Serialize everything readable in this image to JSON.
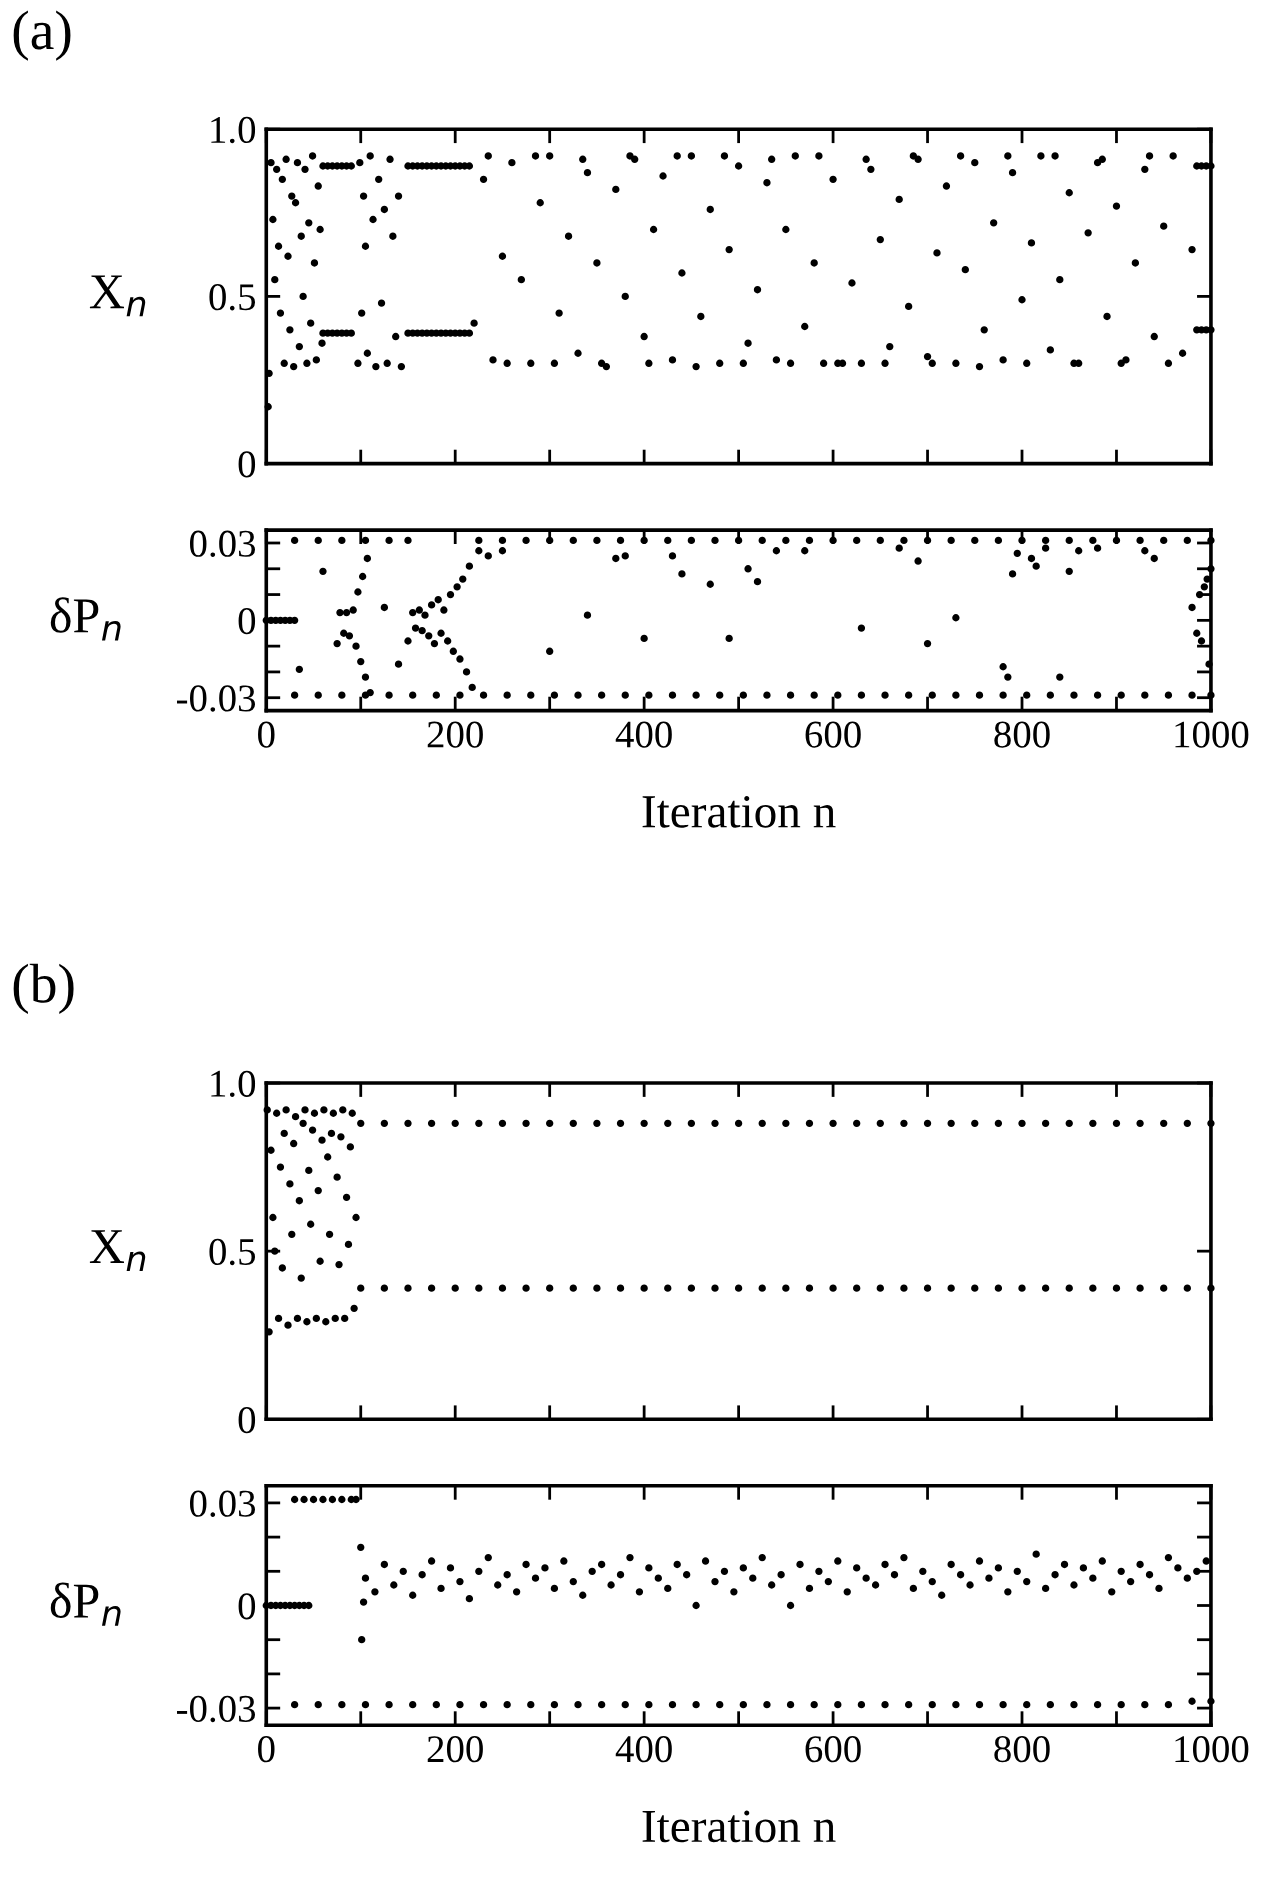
{
  "chart_data": [
    {
      "type": "scatter",
      "title": "(a)",
      "ylabel": "X$_{n}$",
      "xlim": [
        0,
        1000
      ],
      "ylim": [
        0,
        1.0
      ],
      "tick_labels": "y",
      "grid": false,
      "marker": "circle",
      "xticks": [
        0,
        {
          "value": 100,
          "label": null
        },
        200,
        {
          "value": 300,
          "label": null
        },
        400,
        {
          "value": 500,
          "label": null
        },
        600,
        {
          "value": 700,
          "label": null
        },
        800,
        {
          "value": 900,
          "label": null
        },
        1000
      ],
      "yticks": [
        0,
        0.5,
        {
          "value": 1.0,
          "label": "1.0"
        }
      ],
      "series": [
        {
          "color": "#000000",
          "x": [
            2,
            3,
            5,
            7,
            9,
            11,
            13,
            15,
            17,
            19,
            21,
            23,
            25,
            27,
            29,
            31,
            33,
            35,
            37,
            39,
            41,
            43,
            45,
            47,
            49,
            51,
            53,
            55,
            57,
            59,
            97,
            99,
            101,
            103,
            105,
            107,
            110,
            113,
            116,
            119,
            122,
            125,
            128,
            131,
            134,
            137,
            140,
            143,
            220,
            230,
            240,
            250,
            260,
            270,
            280,
            290,
            300,
            310,
            320,
            330,
            340,
            350,
            360,
            370,
            380,
            390,
            400,
            410,
            420,
            430,
            440,
            450,
            460,
            470,
            480,
            490,
            500,
            510,
            520,
            530,
            540,
            550,
            560,
            570,
            580,
            590,
            600,
            610,
            620,
            630,
            640,
            650,
            660,
            670,
            680,
            690,
            700,
            710,
            720,
            730,
            740,
            750,
            760,
            770,
            780,
            790,
            800,
            810,
            820,
            830,
            840,
            850,
            860,
            870,
            880,
            890,
            900,
            910,
            920,
            930,
            940,
            950,
            960,
            970,
            980,
            235,
            285,
            335,
            385,
            435,
            485,
            535,
            585,
            635,
            685,
            735,
            785,
            835,
            885,
            935,
            255,
            305,
            355,
            405,
            455,
            505,
            555,
            605,
            655,
            705,
            755,
            805,
            855,
            905,
            955
          ],
          "values": [
            0.17,
            0.27,
            0.9,
            0.73,
            0.55,
            0.88,
            0.65,
            0.45,
            0.85,
            0.3,
            0.91,
            0.62,
            0.4,
            0.8,
            0.29,
            0.78,
            0.9,
            0.35,
            0.68,
            0.5,
            0.88,
            0.3,
            0.72,
            0.42,
            0.92,
            0.6,
            0.31,
            0.83,
            0.7,
            0.36,
            0.3,
            0.9,
            0.45,
            0.8,
            0.65,
            0.33,
            0.92,
            0.73,
            0.29,
            0.85,
            0.48,
            0.76,
            0.3,
            0.91,
            0.68,
            0.38,
            0.8,
            0.29,
            0.42,
            0.85,
            0.31,
            0.62,
            0.9,
            0.55,
            0.3,
            0.78,
            0.92,
            0.45,
            0.68,
            0.33,
            0.87,
            0.6,
            0.29,
            0.82,
            0.5,
            0.91,
            0.38,
            0.7,
            0.86,
            0.31,
            0.57,
            0.92,
            0.44,
            0.76,
            0.3,
            0.64,
            0.89,
            0.36,
            0.52,
            0.84,
            0.31,
            0.7,
            0.92,
            0.41,
            0.6,
            0.3,
            0.85,
            0.3,
            0.54,
            0.3,
            0.88,
            0.67,
            0.35,
            0.79,
            0.47,
            0.91,
            0.32,
            0.63,
            0.83,
            0.3,
            0.58,
            0.9,
            0.4,
            0.72,
            0.31,
            0.87,
            0.49,
            0.66,
            0.92,
            0.34,
            0.55,
            0.81,
            0.3,
            0.69,
            0.9,
            0.44,
            0.77,
            0.31,
            0.6,
            0.88,
            0.38,
            0.71,
            0.92,
            0.33,
            0.64,
            0.92,
            0.92,
            0.91,
            0.92,
            0.92,
            0.92,
            0.91,
            0.92,
            0.91,
            0.92,
            0.92,
            0.92,
            0.92,
            0.91,
            0.92,
            0.3,
            0.3,
            0.3,
            0.3,
            0.29,
            0.3,
            0.3,
            0.3,
            0.3,
            0.3,
            0.29,
            0.3,
            0.3,
            0.3,
            0.3
          ]
        },
        {
          "color": "#000000",
          "x": [
            60,
            65,
            70,
            75,
            80,
            85,
            90,
            150,
            155,
            160,
            165,
            170,
            175,
            180,
            185,
            190,
            195,
            200,
            205,
            210,
            215,
            985,
            990,
            995,
            1000
          ],
          "values": [
            0.89,
            0.89,
            0.89,
            0.89,
            0.89,
            0.89,
            0.89,
            0.89,
            0.89,
            0.89,
            0.89,
            0.89,
            0.89,
            0.89,
            0.89,
            0.89,
            0.89,
            0.89,
            0.89,
            0.89,
            0.89,
            0.89,
            0.89,
            0.89,
            0.89
          ]
        },
        {
          "color": "#000000",
          "x": [
            60,
            65,
            70,
            75,
            80,
            85,
            90,
            150,
            155,
            160,
            165,
            170,
            175,
            180,
            185,
            190,
            195,
            200,
            205,
            210,
            215,
            985,
            990,
            995,
            1000
          ],
          "values": [
            0.39,
            0.39,
            0.39,
            0.39,
            0.39,
            0.39,
            0.39,
            0.39,
            0.39,
            0.39,
            0.39,
            0.39,
            0.39,
            0.39,
            0.39,
            0.39,
            0.39,
            0.39,
            0.39,
            0.39,
            0.39,
            0.4,
            0.4,
            0.4,
            0.4
          ]
        }
      ]
    },
    {
      "type": "scatter",
      "xlabel": "Iteration n",
      "ylabel": "δP$_{n}$",
      "xlim": [
        0,
        1000
      ],
      "ylim": [
        -0.035,
        0.035
      ],
      "grid": false,
      "marker": "circle",
      "xticks": [
        0,
        {
          "value": 100,
          "label": null
        },
        200,
        {
          "value": 300,
          "label": null
        },
        400,
        {
          "value": 500,
          "label": null
        },
        600,
        {
          "value": 700,
          "label": null
        },
        800,
        {
          "value": 900,
          "label": null
        },
        1000
      ],
      "yticks": [
        -0.03,
        {
          "value": -0.02,
          "label": null
        },
        {
          "value": -0.01,
          "label": null
        },
        0,
        {
          "value": 0.01,
          "label": null
        },
        {
          "value": 0.02,
          "label": null
        },
        0.03
      ],
      "series": [
        {
          "color": "#000000",
          "x": [
            0,
            5,
            10,
            15,
            20,
            25,
            30
          ],
          "values": [
            0,
            0,
            0,
            0,
            0,
            0,
            0
          ]
        },
        {
          "color": "#000000",
          "x": [
            30,
            55,
            80,
            105,
            130,
            150,
            225,
            250,
            275,
            300,
            325,
            350,
            375,
            400,
            425,
            450,
            475,
            500,
            525,
            550,
            575,
            600,
            625,
            650,
            675,
            700,
            725,
            750,
            775,
            800,
            825,
            850,
            875,
            900,
            925,
            950,
            975,
            1000
          ],
          "values": [
            0.031,
            0.031,
            0.031,
            0.031,
            0.031,
            0.031,
            0.031,
            0.031,
            0.031,
            0.031,
            0.031,
            0.031,
            0.031,
            0.031,
            0.031,
            0.031,
            0.031,
            0.031,
            0.031,
            0.031,
            0.031,
            0.031,
            0.031,
            0.031,
            0.031,
            0.031,
            0.031,
            0.031,
            0.031,
            0.031,
            0.031,
            0.031,
            0.031,
            0.031,
            0.031,
            0.031,
            0.031,
            0.031
          ]
        },
        {
          "color": "#000000",
          "x": [
            30,
            55,
            80,
            105,
            130,
            155,
            180,
            205,
            230,
            255,
            280,
            305,
            330,
            355,
            380,
            405,
            430,
            455,
            480,
            505,
            530,
            555,
            580,
            605,
            630,
            655,
            680,
            705,
            730,
            755,
            780,
            805,
            830,
            855,
            880,
            905,
            930,
            955,
            980,
            1000
          ],
          "values": [
            -0.029,
            -0.029,
            -0.029,
            -0.029,
            -0.029,
            -0.029,
            -0.029,
            -0.029,
            -0.029,
            -0.029,
            -0.029,
            -0.029,
            -0.029,
            -0.029,
            -0.029,
            -0.029,
            -0.029,
            -0.029,
            -0.029,
            -0.029,
            -0.029,
            -0.029,
            -0.029,
            -0.029,
            -0.029,
            -0.029,
            -0.029,
            -0.029,
            -0.029,
            -0.029,
            -0.029,
            -0.029,
            -0.029,
            -0.029,
            -0.029,
            -0.029,
            -0.029,
            -0.029,
            -0.029,
            -0.029
          ]
        },
        {
          "color": "#000000",
          "x": [
            35,
            60,
            75,
            78,
            82,
            85,
            88,
            92,
            95,
            97,
            100,
            102,
            105,
            107,
            110,
            125,
            140,
            150,
            155,
            158,
            162,
            165,
            168,
            172,
            175,
            178,
            182,
            185,
            188,
            192,
            195,
            198,
            202,
            205,
            208,
            212,
            215,
            218,
            225,
            235,
            250,
            300,
            340,
            370,
            380,
            400,
            430,
            440,
            470,
            490,
            510,
            520,
            540,
            570,
            630,
            670,
            690,
            700,
            730,
            780,
            785,
            790,
            795,
            810,
            815,
            825,
            840,
            850,
            860,
            880,
            930,
            940,
            980,
            985,
            988,
            990,
            993,
            996,
            998,
            1000
          ],
          "values": [
            -0.019,
            0.019,
            -0.009,
            0.003,
            -0.005,
            0.003,
            -0.006,
            0.004,
            -0.01,
            0.011,
            -0.016,
            0.017,
            -0.022,
            0.024,
            -0.028,
            0.005,
            -0.017,
            -0.008,
            0.003,
            -0.003,
            0.004,
            -0.004,
            0.002,
            -0.006,
            0.006,
            -0.009,
            0.008,
            -0.005,
            0.004,
            -0.008,
            0.01,
            -0.012,
            0.013,
            -0.015,
            0.016,
            -0.02,
            0.021,
            -0.026,
            0.027,
            0.025,
            0.027,
            -0.012,
            0.002,
            0.024,
            0.025,
            -0.007,
            0.025,
            0.018,
            0.014,
            -0.007,
            0.02,
            0.015,
            0.027,
            0.027,
            -0.003,
            0.028,
            0.023,
            -0.009,
            0.001,
            -0.018,
            -0.022,
            0.018,
            0.026,
            0.024,
            0.021,
            0.028,
            -0.022,
            0.019,
            0.027,
            0.028,
            0.027,
            0.024,
            0.005,
            -0.005,
            0.01,
            -0.008,
            0.013,
            0.016,
            -0.017,
            0.02
          ]
        }
      ]
    },
    {
      "type": "scatter",
      "title": "(b)",
      "ylabel": "X$_{n}$",
      "xlim": [
        0,
        1000
      ],
      "ylim": [
        0,
        1.0
      ],
      "tick_labels": "y",
      "grid": false,
      "marker": "circle",
      "xticks": [
        0,
        {
          "value": 100,
          "label": null
        },
        200,
        {
          "value": 300,
          "label": null
        },
        400,
        {
          "value": 500,
          "label": null
        },
        600,
        {
          "value": 700,
          "label": null
        },
        800,
        {
          "value": 900,
          "label": null
        },
        1000
      ],
      "yticks": [
        0,
        0.5,
        {
          "value": 1.0,
          "label": "1.0"
        }
      ],
      "series": [
        {
          "color": "#000000",
          "x": [
            1,
            3,
            5,
            7,
            9,
            11,
            13,
            15,
            17,
            19,
            21,
            23,
            25,
            27,
            29,
            31,
            33,
            35,
            37,
            39,
            41,
            43,
            45,
            47,
            49,
            51,
            53,
            55,
            57,
            59,
            61,
            63,
            65,
            67,
            69,
            71,
            73,
            75,
            77,
            79,
            81,
            83,
            85,
            87,
            89,
            91,
            93,
            95
          ],
          "values": [
            0.92,
            0.26,
            0.8,
            0.6,
            0.5,
            0.91,
            0.3,
            0.75,
            0.45,
            0.85,
            0.92,
            0.28,
            0.7,
            0.55,
            0.82,
            0.9,
            0.3,
            0.65,
            0.42,
            0.88,
            0.92,
            0.29,
            0.74,
            0.58,
            0.86,
            0.91,
            0.3,
            0.68,
            0.47,
            0.83,
            0.92,
            0.29,
            0.78,
            0.55,
            0.85,
            0.91,
            0.3,
            0.72,
            0.46,
            0.84,
            0.92,
            0.3,
            0.66,
            0.52,
            0.81,
            0.91,
            0.33,
            0.6
          ]
        },
        {
          "color": "#000000",
          "x": [
            100,
            125,
            150,
            175,
            200,
            225,
            250,
            275,
            300,
            325,
            350,
            375,
            400,
            425,
            450,
            475,
            500,
            525,
            550,
            575,
            600,
            625,
            650,
            675,
            700,
            725,
            750,
            775,
            800,
            825,
            850,
            875,
            900,
            925,
            950,
            975,
            1000
          ],
          "values": [
            0.88,
            0.88,
            0.88,
            0.88,
            0.88,
            0.88,
            0.88,
            0.88,
            0.88,
            0.88,
            0.88,
            0.88,
            0.88,
            0.88,
            0.88,
            0.88,
            0.88,
            0.88,
            0.88,
            0.88,
            0.88,
            0.88,
            0.88,
            0.88,
            0.88,
            0.88,
            0.88,
            0.88,
            0.88,
            0.88,
            0.88,
            0.88,
            0.88,
            0.88,
            0.88,
            0.88,
            0.88
          ]
        },
        {
          "color": "#000000",
          "x": [
            100,
            125,
            150,
            175,
            200,
            225,
            250,
            275,
            300,
            325,
            350,
            375,
            400,
            425,
            450,
            475,
            500,
            525,
            550,
            575,
            600,
            625,
            650,
            675,
            700,
            725,
            750,
            775,
            800,
            825,
            850,
            875,
            900,
            925,
            950,
            975,
            1000
          ],
          "values": [
            0.39,
            0.39,
            0.39,
            0.39,
            0.39,
            0.39,
            0.39,
            0.39,
            0.39,
            0.39,
            0.39,
            0.39,
            0.39,
            0.39,
            0.39,
            0.39,
            0.39,
            0.39,
            0.39,
            0.39,
            0.39,
            0.39,
            0.39,
            0.39,
            0.39,
            0.39,
            0.39,
            0.39,
            0.39,
            0.39,
            0.39,
            0.39,
            0.39,
            0.39,
            0.39,
            0.39,
            0.39
          ]
        }
      ]
    },
    {
      "type": "scatter",
      "xlabel": "Iteration n",
      "ylabel": "δP$_{n}$",
      "xlim": [
        0,
        1000
      ],
      "ylim": [
        -0.035,
        0.035
      ],
      "grid": false,
      "marker": "circle",
      "xticks": [
        0,
        {
          "value": 100,
          "label": null
        },
        200,
        {
          "value": 300,
          "label": null
        },
        400,
        {
          "value": 500,
          "label": null
        },
        600,
        {
          "value": 700,
          "label": null
        },
        800,
        {
          "value": 900,
          "label": null
        },
        1000
      ],
      "yticks": [
        -0.03,
        {
          "value": -0.02,
          "label": null
        },
        {
          "value": -0.01,
          "label": null
        },
        0,
        {
          "value": 0.01,
          "label": null
        },
        {
          "value": 0.02,
          "label": null
        },
        0.03
      ],
      "series": [
        {
          "color": "#000000",
          "x": [
            0,
            5,
            10,
            15,
            20,
            25,
            30,
            35,
            40,
            45
          ],
          "values": [
            0,
            0,
            0,
            0,
            0,
            0,
            0,
            0,
            0,
            0
          ]
        },
        {
          "color": "#000000",
          "x": [
            30,
            40,
            50,
            60,
            70,
            80,
            90,
            95
          ],
          "values": [
            0.031,
            0.031,
            0.031,
            0.031,
            0.031,
            0.031,
            0.031,
            0.031
          ]
        },
        {
          "color": "#000000",
          "x": [
            30,
            55,
            80,
            105,
            130,
            155,
            180,
            205,
            230,
            255,
            280,
            305,
            330,
            355,
            380,
            405,
            430,
            455,
            480,
            505,
            530,
            555,
            580,
            605,
            630,
            655,
            680,
            705,
            730,
            755,
            780,
            805,
            830,
            855,
            880,
            905,
            930,
            955,
            980,
            1000
          ],
          "values": [
            -0.029,
            -0.029,
            -0.029,
            -0.029,
            -0.029,
            -0.029,
            -0.029,
            -0.029,
            -0.029,
            -0.029,
            -0.029,
            -0.029,
            -0.029,
            -0.029,
            -0.029,
            -0.029,
            -0.029,
            -0.029,
            -0.029,
            -0.029,
            -0.029,
            -0.029,
            -0.029,
            -0.029,
            -0.029,
            -0.029,
            -0.029,
            -0.029,
            -0.029,
            -0.029,
            -0.029,
            -0.029,
            -0.029,
            -0.029,
            -0.029,
            -0.029,
            -0.029,
            -0.029,
            -0.028,
            -0.028
          ]
        },
        {
          "color": "#000000",
          "x": [
            100,
            101,
            103,
            105,
            115,
            125,
            135,
            145,
            155,
            165,
            175,
            185,
            195,
            205,
            215,
            225,
            235,
            245,
            255,
            265,
            275,
            285,
            295,
            305,
            315,
            325,
            335,
            345,
            355,
            365,
            375,
            385,
            395,
            405,
            415,
            425,
            435,
            445,
            455,
            465,
            475,
            485,
            495,
            505,
            515,
            525,
            535,
            545,
            555,
            565,
            575,
            585,
            595,
            605,
            615,
            625,
            635,
            645,
            655,
            665,
            675,
            685,
            695,
            705,
            715,
            725,
            735,
            745,
            755,
            765,
            775,
            785,
            795,
            805,
            815,
            825,
            835,
            845,
            855,
            865,
            875,
            885,
            895,
            905,
            915,
            925,
            935,
            945,
            955,
            965,
            975,
            985,
            995
          ],
          "values": [
            0.017,
            -0.01,
            0.001,
            0.008,
            0.004,
            0.012,
            0.006,
            0.01,
            0.003,
            0.009,
            0.013,
            0.005,
            0.011,
            0.007,
            0.002,
            0.01,
            0.014,
            0.006,
            0.009,
            0.004,
            0.012,
            0.008,
            0.011,
            0.005,
            0.013,
            0.007,
            0.003,
            0.01,
            0.012,
            0.006,
            0.009,
            0.014,
            0.004,
            0.011,
            0.008,
            0.005,
            0.012,
            0.009,
            0.0,
            0.013,
            0.007,
            0.01,
            0.004,
            0.011,
            0.008,
            0.014,
            0.006,
            0.009,
            0.0,
            0.012,
            0.005,
            0.01,
            0.007,
            0.013,
            0.004,
            0.011,
            0.008,
            0.006,
            0.012,
            0.009,
            0.014,
            0.005,
            0.01,
            0.007,
            0.003,
            0.012,
            0.009,
            0.006,
            0.013,
            0.008,
            0.011,
            0.004,
            0.01,
            0.007,
            0.015,
            0.005,
            0.009,
            0.012,
            0.006,
            0.011,
            0.008,
            0.013,
            0.004,
            0.01,
            0.007,
            0.012,
            0.009,
            0.005,
            0.014,
            0.011,
            0.008,
            0.01,
            0.013
          ]
        }
      ]
    }
  ]
}
